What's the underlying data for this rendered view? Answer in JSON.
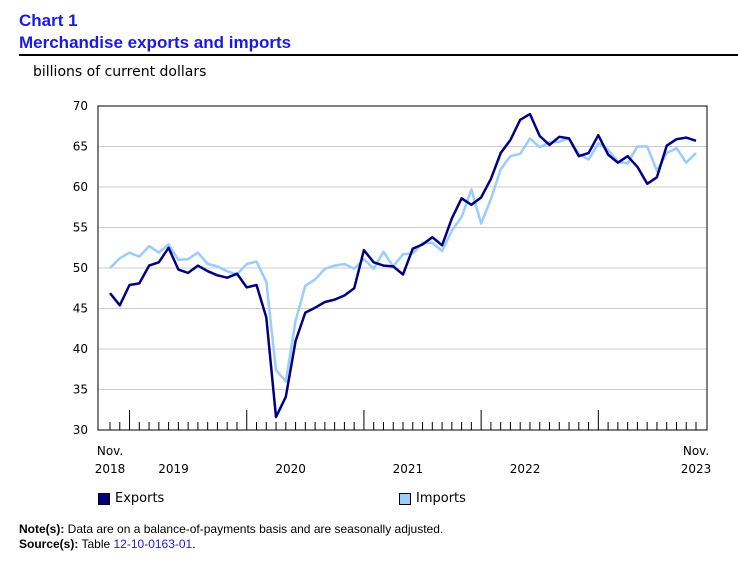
{
  "header": {
    "chart_number": "Chart 1",
    "title": "Merchandise exports and imports"
  },
  "notes": {
    "note_label": "Note(s):",
    "note_text": "Data are on a balance-of-payments basis and are seasonally adjusted.",
    "source_label": "Source(s):",
    "source_prefix": "Table",
    "source_table": "12-10-0163-01",
    "source_suffix": "."
  },
  "colors": {
    "exports": "#000080",
    "imports": "#99ccff"
  },
  "chart_data": {
    "type": "line",
    "title": "Merchandise exports and imports",
    "ylabel": "billions of current dollars",
    "ylim": [
      30,
      70
    ],
    "yticks": [
      30,
      35,
      40,
      45,
      50,
      55,
      60,
      65,
      70
    ],
    "x_start": "2018-11",
    "x_end": "2023-11",
    "x_tick_labels": [
      {
        "line1": "Nov.",
        "line2": "2018",
        "index": 0
      },
      {
        "line1": "",
        "line2": "2019",
        "index": 6.5
      },
      {
        "line1": "",
        "line2": "2020",
        "index": 18.5
      },
      {
        "line1": "",
        "line2": "2021",
        "index": 30.5
      },
      {
        "line1": "",
        "line2": "2022",
        "index": 42.5
      },
      {
        "line1": "Nov.",
        "line2": "2023",
        "index": 60
      }
    ],
    "major_tick_indices": [
      2,
      14,
      26,
      38,
      50
    ],
    "series": [
      {
        "name": "Exports",
        "values": [
          46.9,
          45.4,
          47.9,
          48.1,
          50.3,
          50.7,
          52.5,
          49.8,
          49.4,
          50.3,
          49.6,
          49.1,
          48.8,
          49.3,
          47.6,
          47.9,
          43.9,
          31.6,
          34.1,
          41.0,
          44.5,
          45.1,
          45.8,
          46.1,
          46.6,
          47.5,
          52.2,
          50.7,
          50.3,
          50.2,
          49.2,
          52.4,
          52.9,
          53.8,
          52.8,
          56.1,
          58.6,
          57.8,
          58.7,
          61.0,
          64.2,
          65.8,
          68.3,
          69.0,
          66.3,
          65.2,
          66.2,
          66.0,
          63.8,
          64.2,
          66.4,
          64.0,
          63.0,
          63.8,
          62.5,
          60.4,
          61.2,
          65.1,
          65.9,
          66.1,
          65.7
        ]
      },
      {
        "name": "Imports",
        "values": [
          50.0,
          51.2,
          51.9,
          51.4,
          52.7,
          51.9,
          52.9,
          51.0,
          51.1,
          51.9,
          50.5,
          50.2,
          49.6,
          49.2,
          50.5,
          50.8,
          48.3,
          37.4,
          36.0,
          43.5,
          47.8,
          48.6,
          49.9,
          50.3,
          50.5,
          49.9,
          51.1,
          49.9,
          52.0,
          50.2,
          51.7,
          51.8,
          53.1,
          53.1,
          52.1,
          54.6,
          56.3,
          59.7,
          55.5,
          58.5,
          62.2,
          63.8,
          64.1,
          66.0,
          64.9,
          65.5,
          65.6,
          66.0,
          64.1,
          63.4,
          65.4,
          64.6,
          63.1,
          62.9,
          65.0,
          65.0,
          62.0,
          64.2,
          64.8,
          63.0,
          64.2
        ]
      }
    ]
  }
}
